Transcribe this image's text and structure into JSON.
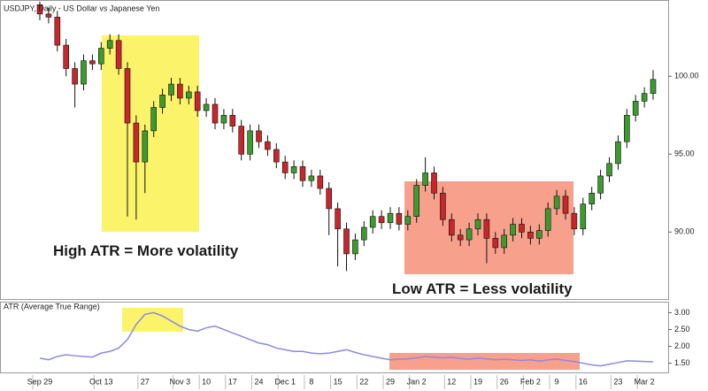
{
  "chart_data": [
    {
      "type": "candlestick",
      "title": "USDJPY, Daily - US Dollar vs Japanese Yen",
      "annotations": [
        "High ATR = More volatility",
        "Low ATR = Less volatility"
      ],
      "up_color": "#3c9a2e",
      "down_color": "#c8262a",
      "ylim": [
        85.7,
        104.9
      ],
      "yticks": [
        {
          "value": 100,
          "label": "100.00"
        },
        {
          "value": 95,
          "label": "95.00"
        },
        {
          "value": 90,
          "label": "90.00"
        }
      ],
      "open": [
        104.6,
        104.0,
        103.8,
        102.0,
        100.5,
        99.5,
        101.0,
        100.8,
        101.8,
        102.3,
        100.5,
        97.0,
        94.5,
        96.5,
        98.0,
        98.8,
        99.5,
        98.6,
        99.0,
        97.8,
        98.2,
        97.0,
        97.5,
        96.8,
        95.0,
        96.5,
        95.8,
        95.3,
        94.5,
        93.8,
        94.2,
        93.3,
        93.6,
        92.8,
        91.5,
        90.2,
        88.6,
        89.5,
        90.3,
        91.0,
        90.6,
        91.2,
        90.5,
        91.0,
        93.0,
        93.8,
        92.5,
        90.8,
        89.8,
        89.5,
        90.2,
        90.8,
        89.6,
        89.0,
        89.8,
        90.5,
        90.0,
        89.6,
        90.1,
        91.5,
        92.3,
        91.2,
        90.2,
        91.8,
        92.5,
        93.6,
        94.4,
        95.8,
        97.5,
        98.4,
        98.9
      ],
      "high": [
        104.8,
        104.4,
        104.2,
        102.4,
        100.9,
        101.4,
        101.4,
        102.2,
        102.7,
        102.7,
        100.9,
        97.5,
        96.9,
        98.4,
        99.2,
        99.9,
        99.9,
        99.4,
        99.4,
        98.6,
        98.6,
        97.9,
        97.9,
        97.2,
        96.9,
        96.9,
        96.2,
        95.7,
        94.9,
        94.6,
        94.6,
        94.0,
        94.0,
        93.2,
        91.9,
        90.6,
        89.9,
        90.7,
        91.4,
        91.4,
        91.6,
        91.6,
        91.4,
        93.4,
        94.8,
        94.2,
        92.9,
        91.2,
        90.2,
        90.6,
        91.2,
        91.2,
        90.0,
        90.2,
        90.9,
        90.9,
        90.4,
        90.5,
        91.9,
        92.7,
        92.7,
        91.6,
        92.2,
        92.9,
        94.0,
        94.8,
        96.2,
        97.9,
        98.8,
        99.3,
        100.4
      ],
      "low": [
        103.6,
        103.4,
        101.6,
        100.0,
        98.0,
        99.1,
        100.4,
        100.4,
        101.4,
        100.1,
        91.0,
        90.8,
        92.5,
        96.1,
        97.6,
        98.4,
        98.2,
        98.2,
        97.4,
        97.4,
        96.6,
        96.6,
        96.4,
        94.6,
        94.6,
        95.4,
        94.9,
        94.1,
        93.4,
        93.4,
        92.9,
        92.9,
        92.4,
        89.8,
        87.8,
        87.5,
        88.2,
        89.1,
        89.9,
        90.2,
        90.2,
        90.1,
        90.1,
        90.6,
        92.6,
        92.1,
        90.4,
        89.4,
        89.1,
        89.1,
        89.8,
        88.0,
        88.6,
        88.6,
        89.4,
        89.6,
        89.2,
        89.2,
        89.7,
        91.1,
        90.8,
        89.8,
        89.8,
        91.4,
        92.1,
        93.2,
        94.0,
        95.4,
        97.1,
        98.0,
        98.5
      ],
      "close": [
        104.0,
        103.8,
        102.0,
        100.5,
        99.5,
        101.0,
        100.8,
        101.8,
        102.3,
        100.5,
        97.0,
        94.5,
        96.5,
        98.0,
        98.8,
        99.5,
        98.6,
        99.0,
        97.8,
        98.2,
        97.0,
        97.5,
        96.8,
        95.0,
        96.5,
        95.8,
        95.3,
        94.5,
        93.8,
        94.2,
        93.3,
        93.6,
        92.8,
        91.5,
        90.2,
        88.6,
        89.5,
        90.3,
        91.0,
        90.6,
        91.2,
        90.5,
        91.0,
        93.0,
        93.8,
        92.5,
        90.8,
        89.8,
        89.5,
        90.2,
        90.8,
        89.6,
        89.0,
        89.8,
        90.5,
        90.0,
        89.6,
        90.1,
        91.5,
        92.3,
        91.2,
        90.2,
        91.8,
        92.5,
        93.6,
        94.4,
        95.8,
        97.5,
        98.4,
        98.9,
        99.8
      ]
    },
    {
      "type": "line",
      "title": "ATR (Average True Range)",
      "color": "#8a8ae6",
      "ylim": [
        1.2,
        3.3
      ],
      "yticks": [
        {
          "value": 3,
          "label": "3.00"
        },
        {
          "value": 2.5,
          "label": "2.50"
        },
        {
          "value": 2,
          "label": "2.00"
        },
        {
          "value": 1.5,
          "label": "1.50"
        }
      ],
      "categories": [
        "Sep 29",
        null,
        null,
        null,
        null,
        null,
        null,
        "Oct 13",
        null,
        null,
        null,
        null,
        "27",
        null,
        null,
        null,
        "Nov 3",
        null,
        null,
        "10",
        null,
        null,
        "17",
        null,
        null,
        "24",
        null,
        null,
        "Dec 1",
        null,
        null,
        "8",
        null,
        null,
        "15",
        null,
        null,
        "22",
        null,
        null,
        "29",
        null,
        null,
        "Jan 2",
        null,
        null,
        null,
        "12",
        null,
        null,
        "19",
        null,
        null,
        "26",
        null,
        null,
        "Feb 2",
        null,
        null,
        "9",
        null,
        null,
        "16",
        null,
        null,
        null,
        "23",
        null,
        null,
        "Mar 2",
        null
      ],
      "values": [
        1.65,
        1.6,
        1.7,
        1.75,
        1.72,
        1.7,
        1.68,
        1.8,
        1.85,
        1.95,
        2.2,
        2.65,
        2.95,
        3.0,
        2.9,
        2.75,
        2.6,
        2.5,
        2.45,
        2.55,
        2.6,
        2.5,
        2.4,
        2.3,
        2.2,
        2.1,
        2.05,
        1.95,
        1.9,
        1.85,
        1.85,
        1.8,
        1.78,
        1.8,
        1.85,
        1.9,
        1.82,
        1.75,
        1.7,
        1.65,
        1.6,
        1.62,
        1.63,
        1.66,
        1.7,
        1.68,
        1.66,
        1.68,
        1.64,
        1.62,
        1.65,
        1.63,
        1.6,
        1.62,
        1.6,
        1.58,
        1.6,
        1.56,
        1.6,
        1.62,
        1.58,
        1.55,
        1.5,
        1.45,
        1.42,
        1.47,
        1.52,
        1.57,
        1.56,
        1.55,
        1.54
      ]
    }
  ]
}
